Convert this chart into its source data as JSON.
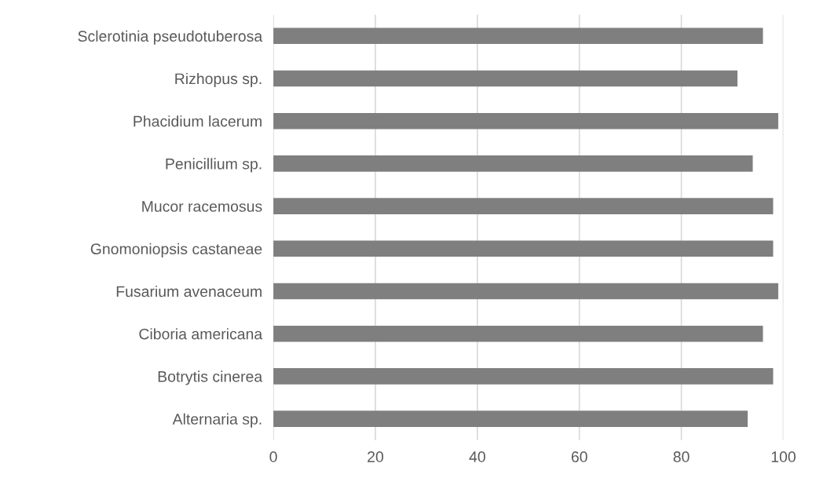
{
  "chart_data": {
    "type": "bar",
    "orientation": "horizontal",
    "categories": [
      "Sclerotinia pseudotuberosa",
      "Rizhopus sp.",
      "Phacidium lacerum",
      "Penicillium sp.",
      "Mucor racemosus",
      "Gnomoniopsis castaneae",
      "Fusarium avenaceum",
      "Ciboria americana",
      "Botrytis cinerea",
      "Alternaria sp."
    ],
    "values": [
      96,
      91,
      99,
      94,
      98,
      98,
      99,
      96,
      98,
      93
    ],
    "color": "#7f7f7f",
    "xlim": [
      0,
      100
    ],
    "xticks": [
      0,
      20,
      40,
      60,
      80,
      100
    ],
    "grid": "x",
    "legend": false
  }
}
